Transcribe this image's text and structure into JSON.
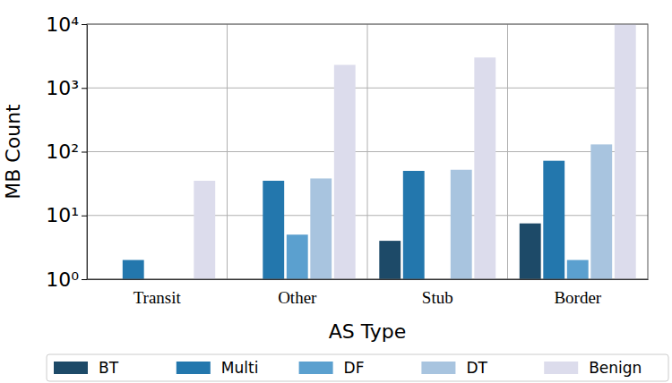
{
  "chart_data": {
    "type": "bar",
    "x_label": "AS Type",
    "y_label": "MB Count",
    "categories": [
      "Transit",
      "Other",
      "Stub",
      "Border"
    ],
    "series": [
      {
        "name": "BT",
        "color": "#1d4a68",
        "values": [
          null,
          null,
          4,
          7.5
        ]
      },
      {
        "name": "Multi",
        "color": "#2377ad",
        "values": [
          2,
          35,
          50,
          72
        ]
      },
      {
        "name": "DF",
        "color": "#5ba0cf",
        "values": [
          null,
          5,
          null,
          2
        ]
      },
      {
        "name": "DT",
        "color": "#a8c4df",
        "values": [
          null,
          38,
          52,
          130
        ]
      },
      {
        "name": "Benign",
        "color": "#dcdcec",
        "values": [
          35,
          2300,
          3000,
          10000
        ]
      }
    ],
    "ylim": [
      1,
      10000
    ],
    "yticks": [
      {
        "value": 1,
        "label": "10⁰"
      },
      {
        "value": 10,
        "label": "10¹"
      },
      {
        "value": 100,
        "label": "10²"
      },
      {
        "value": 1000,
        "label": "10³"
      },
      {
        "value": 10000,
        "label": "10⁴"
      }
    ],
    "log": "y",
    "grid": true,
    "legend": "bottom"
  }
}
